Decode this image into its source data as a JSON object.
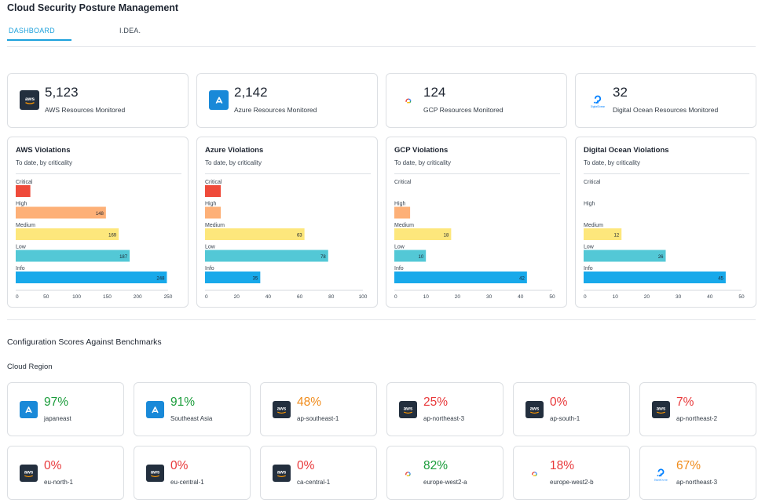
{
  "page": {
    "title": "Cloud Security Posture Management"
  },
  "tabs": [
    {
      "label": "DASHBOARD",
      "active": true
    },
    {
      "label": "I.DEA.",
      "active": false
    }
  ],
  "resources": [
    {
      "provider": "aws",
      "icon": "aws-icon",
      "value": "5,123",
      "label": "AWS Resources Monitored"
    },
    {
      "provider": "azure",
      "icon": "azure-icon",
      "value": "2,142",
      "label": "Azure Resources Monitored"
    },
    {
      "provider": "gcp",
      "icon": "gcp-icon",
      "value": "124",
      "label": "GCP Resources Monitored"
    },
    {
      "provider": "do",
      "icon": "digitalocean-icon",
      "value": "32",
      "label": "Digital Ocean Resources Monitored"
    }
  ],
  "colors": {
    "critical": "#ef4a3a",
    "high": "#fdb077",
    "medium": "#fde77c",
    "low": "#53c8d6",
    "info": "#18a9ea",
    "score_green": "#1a9c3a",
    "score_orange": "#f08c1c",
    "score_red": "#e8383a",
    "accent": "#1da1dc"
  },
  "chart_data": [
    {
      "type": "bar",
      "orientation": "horizontal",
      "title": "AWS Violations",
      "subtitle": "To date, by criticality",
      "categories": [
        "Critical",
        "High",
        "Medium",
        "Low",
        "Info"
      ],
      "values": [
        24,
        148,
        169,
        187,
        248
      ],
      "value_labels": [
        "",
        "148",
        "169",
        "187",
        "248"
      ],
      "xlim": [
        0,
        250
      ],
      "xticks": [
        0,
        50,
        100,
        150,
        200,
        250
      ]
    },
    {
      "type": "bar",
      "orientation": "horizontal",
      "title": "Azure Violations",
      "subtitle": "To date, by criticality",
      "categories": [
        "Critical",
        "High",
        "Medium",
        "Low",
        "Info"
      ],
      "values": [
        10,
        10,
        63,
        78,
        35
      ],
      "value_labels": [
        "",
        "",
        "63",
        "78",
        "35"
      ],
      "xlim": [
        0,
        100
      ],
      "xticks": [
        0,
        20,
        40,
        60,
        80,
        100
      ]
    },
    {
      "type": "bar",
      "orientation": "horizontal",
      "title": "GCP Violations",
      "subtitle": "To date, by criticality",
      "categories": [
        "Critical",
        "High",
        "Medium",
        "Low",
        "Info"
      ],
      "values": [
        0,
        5,
        18,
        10,
        42
      ],
      "value_labels": [
        "",
        "",
        "18",
        "10",
        "42"
      ],
      "xlim": [
        0,
        50
      ],
      "xticks": [
        0,
        10,
        20,
        30,
        40,
        50
      ]
    },
    {
      "type": "bar",
      "orientation": "horizontal",
      "title": "Digital Ocean Violations",
      "subtitle": "To date, by criticality",
      "categories": [
        "Critical",
        "High",
        "Medium",
        "Low",
        "Info"
      ],
      "values": [
        0,
        0,
        12,
        26,
        45
      ],
      "value_labels": [
        "",
        "",
        "12",
        "26",
        "45"
      ],
      "xlim": [
        0,
        50
      ],
      "xticks": [
        0,
        10,
        20,
        30,
        40,
        50
      ]
    }
  ],
  "benchmarks": {
    "title": "Configuration Scores Against Benchmarks",
    "subtitle": "Cloud Region",
    "regions": [
      {
        "provider": "azure",
        "icon": "azure-icon",
        "score": "97%",
        "region": "japaneast",
        "status": "green"
      },
      {
        "provider": "azure",
        "icon": "azure-icon",
        "score": "91%",
        "region": "Southeast Asia",
        "status": "green"
      },
      {
        "provider": "aws",
        "icon": "aws-icon",
        "score": "48%",
        "region": "ap-southeast-1",
        "status": "orange"
      },
      {
        "provider": "aws",
        "icon": "aws-icon",
        "score": "25%",
        "region": "ap-northeast-3",
        "status": "red"
      },
      {
        "provider": "aws",
        "icon": "aws-icon",
        "score": "0%",
        "region": "ap-south-1",
        "status": "red"
      },
      {
        "provider": "aws",
        "icon": "aws-icon",
        "score": "7%",
        "region": "ap-northeast-2",
        "status": "red"
      },
      {
        "provider": "aws",
        "icon": "aws-icon",
        "score": "0%",
        "region": "eu-north-1",
        "status": "red"
      },
      {
        "provider": "aws",
        "icon": "aws-icon",
        "score": "0%",
        "region": "eu-central-1",
        "status": "red"
      },
      {
        "provider": "aws",
        "icon": "aws-icon",
        "score": "0%",
        "region": "ca-central-1",
        "status": "red"
      },
      {
        "provider": "gcp",
        "icon": "gcp-icon",
        "score": "82%",
        "region": "europe-west2-a",
        "status": "green"
      },
      {
        "provider": "gcp",
        "icon": "gcp-icon",
        "score": "18%",
        "region": "europe-west2-b",
        "status": "red"
      },
      {
        "provider": "do",
        "icon": "digitalocean-icon",
        "score": "67%",
        "region": "ap-northeast-3",
        "status": "orange"
      }
    ]
  }
}
